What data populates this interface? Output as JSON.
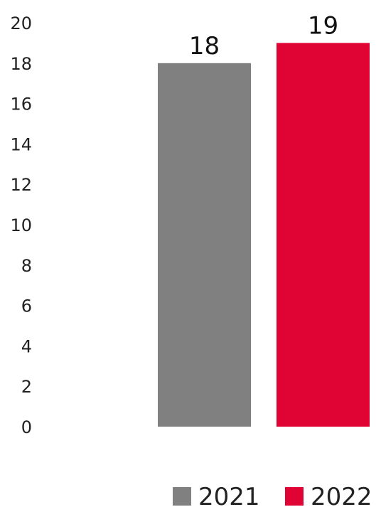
{
  "chart_data": {
    "type": "bar",
    "title": "",
    "xlabel": "",
    "ylabel": "",
    "ylim": [
      0,
      20
    ],
    "yticks": [
      0,
      2,
      4,
      6,
      8,
      10,
      12,
      14,
      16,
      18,
      20
    ],
    "grid": false,
    "legend_position": "bottom-right",
    "series": [
      {
        "name": "2021",
        "value": 18,
        "color": "#808080"
      },
      {
        "name": "2022",
        "value": 19,
        "color": "#e00434"
      }
    ]
  }
}
